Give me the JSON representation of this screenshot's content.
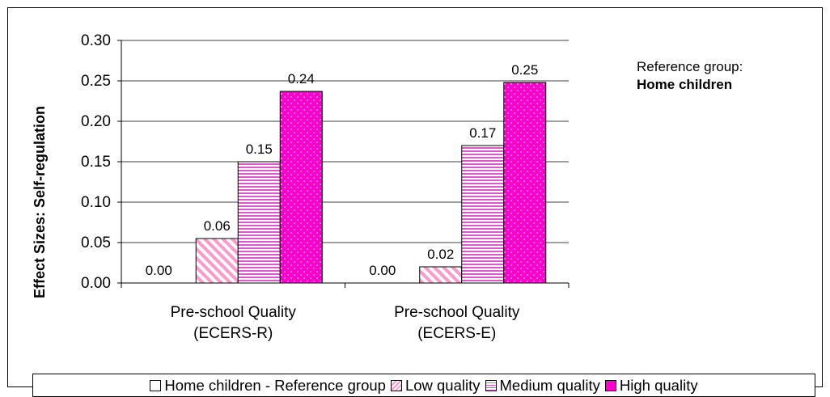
{
  "chart_data": {
    "type": "bar",
    "title": "",
    "xlabel": "",
    "ylabel": "Effect Sizes: Self-regulation",
    "ylim": [
      0,
      0.3
    ],
    "yticks": [
      "0.00",
      "0.05",
      "0.10",
      "0.15",
      "0.20",
      "0.25",
      "0.30"
    ],
    "categories": [
      [
        "Pre-school Quality",
        "(ECERS-R)"
      ],
      [
        "Pre-school Quality",
        "(ECERS-E)"
      ]
    ],
    "series": [
      {
        "name": "Home children - Reference group",
        "values": [
          0.0,
          0.0
        ],
        "labels": [
          "0.00",
          "0.00"
        ],
        "color": "#ffffff",
        "pattern": "none"
      },
      {
        "name": "Low quality",
        "values": [
          0.055,
          0.02
        ],
        "labels": [
          "0.06",
          "0.02"
        ],
        "color": "#ff99cc",
        "pattern": "diagonal"
      },
      {
        "name": "Medium quality",
        "values": [
          0.15,
          0.17
        ],
        "labels": [
          "0.15",
          "0.17"
        ],
        "color": "#e055d0",
        "pattern": "horizontal"
      },
      {
        "name": "High quality",
        "values": [
          0.237,
          0.248
        ],
        "labels": [
          "0.24",
          "0.25"
        ],
        "color": "#ff00cc",
        "pattern": "dots"
      }
    ],
    "grid": true,
    "legend_position": "bottom"
  },
  "annotation": {
    "line1": "Reference group:",
    "line2": "Home children"
  }
}
